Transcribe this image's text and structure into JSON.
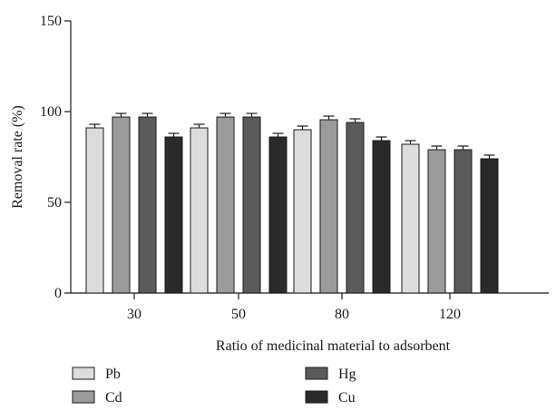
{
  "chart_data": {
    "type": "bar",
    "xlabel": "Ratio of medicinal material to adsorbent",
    "ylabel": "Removal rate (%)",
    "categories": [
      "30",
      "50",
      "80",
      "120"
    ],
    "ylim": [
      0,
      150
    ],
    "yticks": [
      "0",
      "50",
      "100",
      "150"
    ],
    "grid": false,
    "legend_position": "bottom",
    "series": [
      {
        "name": "Pb",
        "color": "#dcdcdc",
        "values": [
          91,
          91,
          90,
          82
        ],
        "errors": [
          2,
          2,
          2,
          2
        ]
      },
      {
        "name": "Cd",
        "color": "#9b9b9b",
        "values": [
          97,
          97,
          95.5,
          79
        ],
        "errors": [
          2,
          2,
          2,
          2
        ]
      },
      {
        "name": "Hg",
        "color": "#5a5a5a",
        "values": [
          97,
          97,
          94,
          79
        ],
        "errors": [
          2,
          2,
          2,
          2
        ]
      },
      {
        "name": "Cu",
        "color": "#2a2a2a",
        "values": [
          86,
          86,
          84,
          74
        ],
        "errors": [
          2,
          2,
          2,
          2
        ]
      }
    ]
  }
}
